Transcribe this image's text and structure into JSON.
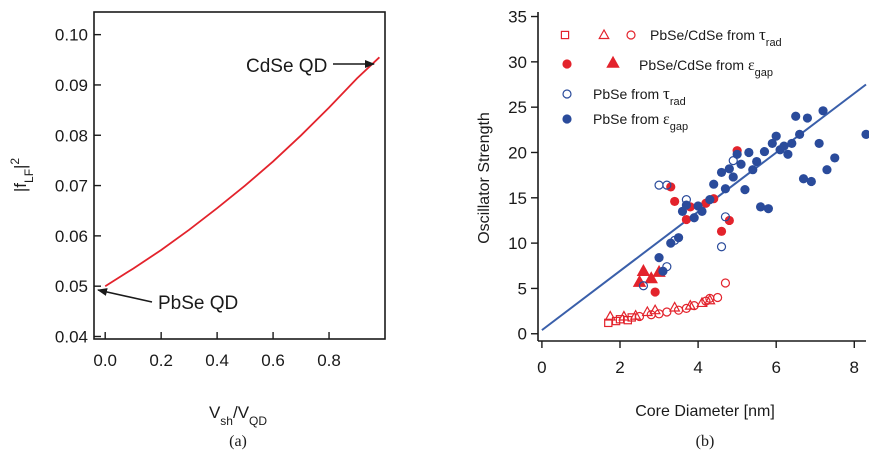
{
  "colors": {
    "axis": "#1a1a1a",
    "red": "#e3232c",
    "blue": "#2a4b9b",
    "fit_line": "#3a5faa"
  },
  "chart_data": [
    {
      "type": "line",
      "caption": "(a)",
      "xlabel": "Vsh/VQD",
      "ylabel": "|fLF|2",
      "xlim": [
        -0.04,
        1.0
      ],
      "ylim": [
        0.0395,
        0.1045
      ],
      "x_ticks": [
        0.0,
        0.2,
        0.4,
        0.6,
        0.8
      ],
      "x_tick_labels": [
        "0.0",
        "0.2",
        "0.4",
        "0.6",
        "0.8"
      ],
      "y_ticks": [
        0.04,
        0.05,
        0.06,
        0.07,
        0.08,
        0.09,
        0.1
      ],
      "y_tick_labels": [
        "0.04",
        "0.05",
        "0.06",
        "0.07",
        "0.08",
        "0.09",
        "0.10"
      ],
      "series": [
        {
          "x": [
            0.0,
            0.1,
            0.2,
            0.3,
            0.4,
            0.5,
            0.6,
            0.7,
            0.8,
            0.9,
            0.98
          ],
          "y": [
            0.05,
            0.0535,
            0.0572,
            0.0612,
            0.0655,
            0.07,
            0.0748,
            0.08,
            0.0855,
            0.0913,
            0.0955
          ]
        }
      ],
      "annotations": [
        {
          "text": "CdSe QD",
          "points_to": [
            0.98,
            0.0955
          ]
        },
        {
          "text": "PbSe QD",
          "points_to": [
            0.0,
            0.0495
          ]
        }
      ]
    },
    {
      "type": "scatter",
      "caption": "(b)",
      "xlabel": "Core Diameter [nm]",
      "ylabel": "Oscillator Strength",
      "xlim": [
        -0.1,
        8.3
      ],
      "ylim": [
        -0.8,
        35.5
      ],
      "x_ticks": [
        0,
        2,
        4,
        6,
        8
      ],
      "x_tick_labels": [
        "0",
        "2",
        "4",
        "6",
        "8"
      ],
      "y_ticks": [
        0,
        5,
        10,
        15,
        20,
        25,
        30,
        35
      ],
      "y_tick_labels": [
        "0",
        "5",
        "10",
        "15",
        "20",
        "25",
        "30",
        "35"
      ],
      "legend": {
        "position": "top-left",
        "entries": [
          {
            "label": "PbSe/CdSe from τrad",
            "markers": [
              "open-square",
              "open-triangle",
              "open-circle"
            ],
            "color": "red"
          },
          {
            "label": "PbSe/CdSe from εgap",
            "markers": [
              "filled-circle",
              "filled-triangle"
            ],
            "color": "red"
          },
          {
            "label": "PbSe from τrad",
            "markers": [
              "open-circle"
            ],
            "color": "blue"
          },
          {
            "label": "PbSe from εgap",
            "markers": [
              "filled-circle"
            ],
            "color": "blue"
          }
        ]
      },
      "fit_line": {
        "x": [
          0.0,
          8.3
        ],
        "y": [
          0.4,
          27.5
        ]
      },
      "series": [
        {
          "name": "PbSe/CdSe from τrad (squares)",
          "marker": "open-square",
          "color": "red",
          "points": [
            [
              1.7,
              1.2
            ],
            [
              1.9,
              1.4
            ],
            [
              2.0,
              1.6
            ],
            [
              2.2,
              1.5
            ],
            [
              2.3,
              1.8
            ]
          ]
        },
        {
          "name": "PbSe/CdSe from τrad (triangles)",
          "marker": "open-triangle",
          "color": "red",
          "points": [
            [
              1.75,
              1.9
            ],
            [
              2.1,
              1.9
            ],
            [
              2.4,
              2.0
            ],
            [
              2.7,
              2.4
            ],
            [
              2.9,
              2.6
            ],
            [
              3.4,
              2.9
            ],
            [
              3.8,
              3.1
            ],
            [
              4.1,
              3.4
            ],
            [
              4.3,
              3.7
            ]
          ]
        },
        {
          "name": "PbSe/CdSe from τrad (circles)",
          "marker": "open-circle",
          "color": "red",
          "points": [
            [
              2.5,
              1.9
            ],
            [
              2.8,
              2.1
            ],
            [
              3.0,
              2.2
            ],
            [
              3.2,
              2.4
            ],
            [
              3.5,
              2.6
            ],
            [
              3.7,
              2.8
            ],
            [
              3.9,
              3.1
            ],
            [
              4.2,
              3.6
            ],
            [
              4.3,
              3.9
            ],
            [
              4.5,
              4.0
            ],
            [
              4.7,
              5.6
            ]
          ]
        },
        {
          "name": "PbSe/CdSe from εgap (circles)",
          "marker": "filled-circle",
          "color": "red",
          "points": [
            [
              2.9,
              4.6
            ],
            [
              3.3,
              16.2
            ],
            [
              3.4,
              14.6
            ],
            [
              3.7,
              12.6
            ],
            [
              3.8,
              14.0
            ],
            [
              4.2,
              14.4
            ],
            [
              4.4,
              14.9
            ],
            [
              4.6,
              11.3
            ],
            [
              4.8,
              12.5
            ],
            [
              5.0,
              20.2
            ]
          ]
        },
        {
          "name": "PbSe/CdSe from εgap (triangles)",
          "marker": "filled-triangle",
          "color": "red",
          "points": [
            [
              2.5,
              5.7
            ],
            [
              2.6,
              6.9
            ],
            [
              2.8,
              6.1
            ],
            [
              3.0,
              6.8
            ]
          ]
        },
        {
          "name": "PbSe from τrad",
          "marker": "open-circle",
          "color": "blue",
          "points": [
            [
              2.6,
              5.3
            ],
            [
              3.0,
              16.4
            ],
            [
              3.2,
              16.4
            ],
            [
              3.2,
              7.4
            ],
            [
              3.4,
              10.3
            ],
            [
              3.7,
              14.8
            ],
            [
              4.6,
              9.6
            ],
            [
              4.7,
              12.9
            ],
            [
              4.9,
              19.1
            ]
          ]
        },
        {
          "name": "PbSe from εgap",
          "marker": "filled-circle",
          "color": "blue",
          "points": [
            [
              3.0,
              8.4
            ],
            [
              3.1,
              6.9
            ],
            [
              3.3,
              10.0
            ],
            [
              3.5,
              10.6
            ],
            [
              3.6,
              13.5
            ],
            [
              3.7,
              14.2
            ],
            [
              3.9,
              12.8
            ],
            [
              4.0,
              14.1
            ],
            [
              4.1,
              13.5
            ],
            [
              4.3,
              14.8
            ],
            [
              4.4,
              16.5
            ],
            [
              4.6,
              17.8
            ],
            [
              4.7,
              16.0
            ],
            [
              4.8,
              18.2
            ],
            [
              4.9,
              17.3
            ],
            [
              5.0,
              19.8
            ],
            [
              5.1,
              18.7
            ],
            [
              5.2,
              15.9
            ],
            [
              5.3,
              20.0
            ],
            [
              5.4,
              18.1
            ],
            [
              5.5,
              19.0
            ],
            [
              5.6,
              14.0
            ],
            [
              5.7,
              20.1
            ],
            [
              5.8,
              13.8
            ],
            [
              5.9,
              21.0
            ],
            [
              6.0,
              21.8
            ],
            [
              6.1,
              20.3
            ],
            [
              6.2,
              20.7
            ],
            [
              6.3,
              19.8
            ],
            [
              6.4,
              21.0
            ],
            [
              6.5,
              24.0
            ],
            [
              6.6,
              22.0
            ],
            [
              6.7,
              17.1
            ],
            [
              6.8,
              23.8
            ],
            [
              6.9,
              16.8
            ],
            [
              7.1,
              21.0
            ],
            [
              7.2,
              24.6
            ],
            [
              7.3,
              18.1
            ],
            [
              7.5,
              19.4
            ],
            [
              8.3,
              22.0
            ]
          ]
        }
      ]
    }
  ]
}
